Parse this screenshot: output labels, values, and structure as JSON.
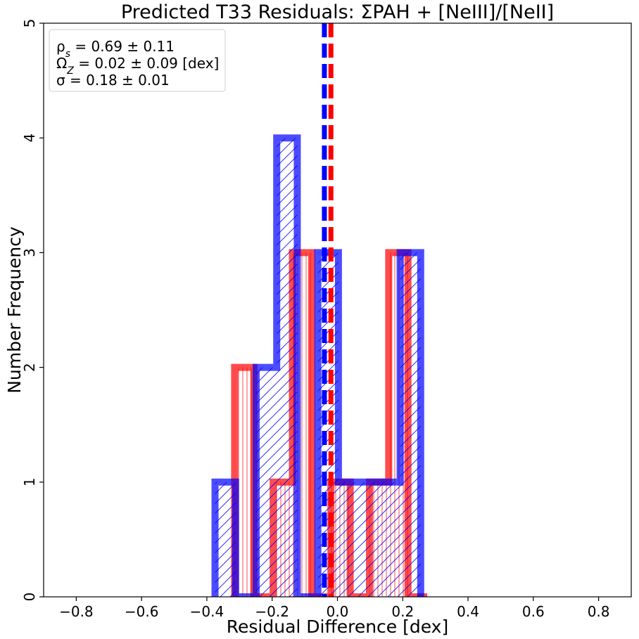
{
  "chart_data": {
    "type": "histogram",
    "title": "Predicted T33 Residuals: ΣPAH + [NeIII]/[NeII]",
    "xlabel": "Residual Difference [dex]",
    "ylabel": "Number Frequency",
    "xlim": [
      -0.9,
      0.9
    ],
    "ylim": [
      0,
      5
    ],
    "xticks": [
      -0.8,
      -0.6,
      -0.4,
      -0.2,
      0.0,
      0.2,
      0.4,
      0.6,
      0.8
    ],
    "xtick_labels": [
      "−0.8",
      "−0.6",
      "−0.4",
      "−0.2",
      "0.0",
      "0.2",
      "0.4",
      "0.6",
      "0.8"
    ],
    "yticks": [
      0,
      1,
      2,
      3,
      4,
      5
    ],
    "ytick_labels": [
      "0",
      "1",
      "2",
      "3",
      "4",
      "5"
    ],
    "grid": false,
    "series": [
      {
        "color": "#ff0000",
        "hatch": "vertical",
        "bin_edges": [
          -0.315,
          -0.256,
          -0.197,
          -0.138,
          -0.079,
          -0.02,
          0.039,
          0.098,
          0.157,
          0.216,
          0.275
        ],
        "counts": [
          2,
          0,
          1,
          3,
          0,
          1,
          0,
          1,
          3,
          0
        ],
        "median": -0.02
      },
      {
        "color": "#0000ff",
        "hatch": "diagonal",
        "bin_edges": [
          -0.375,
          -0.312,
          -0.249,
          -0.186,
          -0.123,
          -0.06,
          0.003,
          0.066,
          0.129,
          0.192,
          0.255
        ],
        "counts": [
          1,
          0,
          2,
          4,
          0,
          3,
          1,
          1,
          1,
          3
        ],
        "median": -0.04
      }
    ],
    "annotation": {
      "lines": [
        {
          "main": "ρ",
          "sub": "s",
          "rest": " = 0.69 ± 0.11"
        },
        {
          "main": "Ω",
          "sub": "Z",
          "rest": " = 0.02 ± 0.09 [dex]"
        },
        {
          "main": "σ",
          "sub": "",
          "rest": " = 0.18 ± 0.01"
        }
      ],
      "placement": "top-left"
    }
  }
}
